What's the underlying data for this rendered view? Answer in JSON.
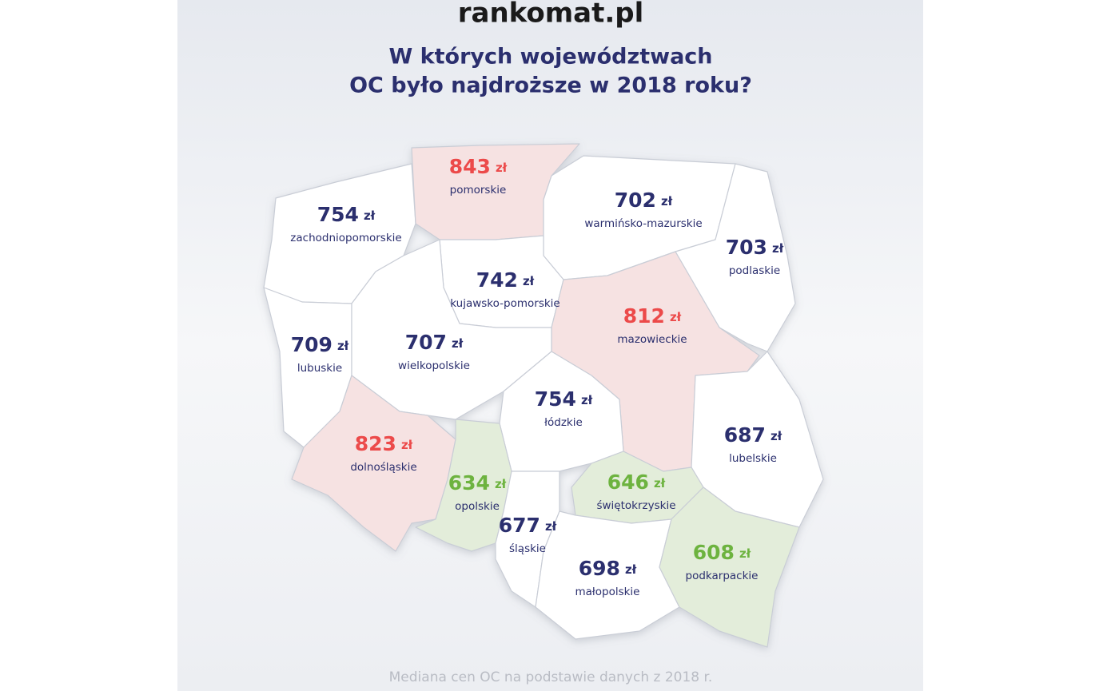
{
  "header": {
    "logo": "rankomat.pl",
    "title": [
      "W których województwach",
      "OC było najdroższe w 2018 roku?"
    ]
  },
  "currency": "zł",
  "regions": [
    {
      "name": "zachodniopomorskie",
      "value": 754,
      "color": "#2b2f6e",
      "fill": "#ffffff"
    },
    {
      "name": "pomorskie",
      "value": 843,
      "color": "#ec4a4a",
      "fill": "#f6e2e2"
    },
    {
      "name": "warmińsko-mazurskie",
      "value": 702,
      "color": "#2b2f6e",
      "fill": "#ffffff"
    },
    {
      "name": "podlaskie",
      "value": 703,
      "color": "#2b2f6e",
      "fill": "#ffffff"
    },
    {
      "name": "kujawsko-pomorskie",
      "value": 742,
      "color": "#2b2f6e",
      "fill": "#ffffff"
    },
    {
      "name": "mazowieckie",
      "value": 812,
      "color": "#ec4a4a",
      "fill": "#f6e2e2"
    },
    {
      "name": "lubuskie",
      "value": 709,
      "color": "#2b2f6e",
      "fill": "#ffffff"
    },
    {
      "name": "wielkopolskie",
      "value": 707,
      "color": "#2b2f6e",
      "fill": "#ffffff"
    },
    {
      "name": "dolnośląskie",
      "value": 823,
      "color": "#ec4a4a",
      "fill": "#f6e2e2"
    },
    {
      "name": "łódzkie",
      "value": 754,
      "color": "#2b2f6e",
      "fill": "#ffffff"
    },
    {
      "name": "lubelskie",
      "value": 687,
      "color": "#2b2f6e",
      "fill": "#ffffff"
    },
    {
      "name": "opolskie",
      "value": 634,
      "color": "#6db33f",
      "fill": "#e3edda"
    },
    {
      "name": "śląskie",
      "value": 677,
      "color": "#2b2f6e",
      "fill": "#ffffff"
    },
    {
      "name": "świętokrzyskie",
      "value": 646,
      "color": "#6db33f",
      "fill": "#e3edda"
    },
    {
      "name": "małopolskie",
      "value": 698,
      "color": "#2b2f6e",
      "fill": "#ffffff"
    },
    {
      "name": "podkarpackie",
      "value": 608,
      "color": "#6db33f",
      "fill": "#e3edda"
    }
  ],
  "footer": "Mediana cen OC na podstawie danych z 2018 r."
}
